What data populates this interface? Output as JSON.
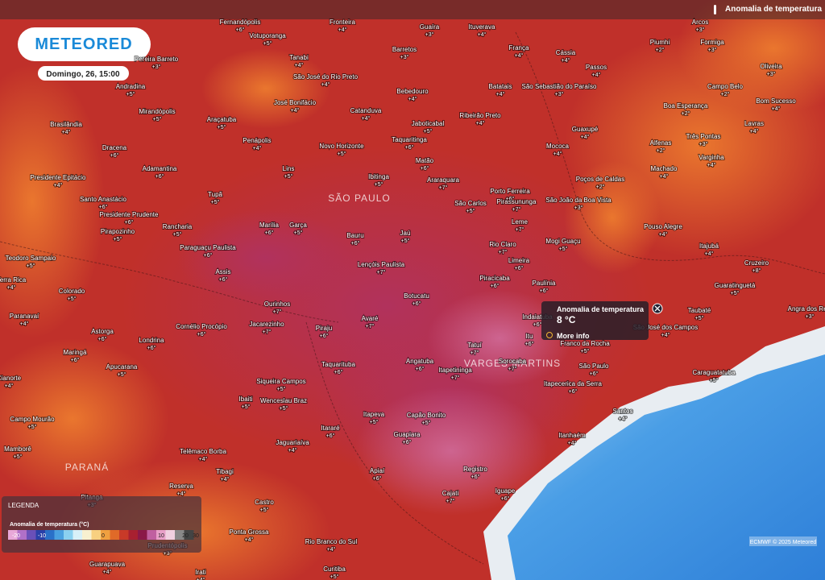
{
  "header": {
    "logo": "METEORED",
    "timestamp": "Domingo, 26, 15:00",
    "layer_title": "Anomalia de temperatura"
  },
  "legend": {
    "title": "LEGENDA",
    "subtitle": "Anomalia de temperatura (°C)",
    "ticks": [
      "-20",
      "-10",
      "0",
      "10",
      "20",
      "30"
    ]
  },
  "popup": {
    "title": "Anomalia de temperatura",
    "value": "8 °C",
    "link": "More info"
  },
  "regions": [
    "SÃO PAULO",
    "PARANÁ",
    "VARGES MARTINS"
  ],
  "attribution": "ECMWF © 2025 Meteored",
  "cities": [
    {
      "name": "Fernandópolis",
      "anomaly": "+6°"
    },
    {
      "name": "Votuporanga",
      "anomaly": "+5°"
    },
    {
      "name": "Fronteira",
      "anomaly": "+4°"
    },
    {
      "name": "Guaíra",
      "anomaly": "+3°"
    },
    {
      "name": "Ituverava",
      "anomaly": "+4°"
    },
    {
      "name": "Barretos",
      "anomaly": "+3°"
    },
    {
      "name": "França",
      "anomaly": "+4°"
    },
    {
      "name": "Cássia",
      "anomaly": "+4°"
    },
    {
      "name": "Passos",
      "anomaly": "+4°"
    },
    {
      "name": "Pereira Barreto",
      "anomaly": "+3°"
    },
    {
      "name": "Tanabi",
      "anomaly": "+4°"
    },
    {
      "name": "São José do Rio Preto",
      "anomaly": "+4°"
    },
    {
      "name": "Bebedouro",
      "anomaly": "+4°"
    },
    {
      "name": "Batatais",
      "anomaly": "+4°"
    },
    {
      "name": "São Sebastião do Paraíso",
      "anomaly": "+3°"
    },
    {
      "name": "Andradina",
      "anomaly": "+5°"
    },
    {
      "name": "José Bonifácio",
      "anomaly": "+4°"
    },
    {
      "name": "Catanduva",
      "anomaly": "+4°"
    },
    {
      "name": "Ribeirão Preto",
      "anomaly": "+4°"
    },
    {
      "name": "Mirandópolis",
      "anomaly": "+5°"
    },
    {
      "name": "Araçatuba",
      "anomaly": "+5°"
    },
    {
      "name": "Jaboticabal",
      "anomaly": "+5°"
    },
    {
      "name": "Guaxupé",
      "anomaly": "+4°"
    },
    {
      "name": "Brasilândia",
      "anomaly": "+4°"
    },
    {
      "name": "Penápolis",
      "anomaly": "+4°"
    },
    {
      "name": "Novo Horizonte",
      "anomaly": "+5°"
    },
    {
      "name": "Taquaritinga",
      "anomaly": "+6°"
    },
    {
      "name": "Mococa",
      "anomaly": "+4°"
    },
    {
      "name": "Dracena",
      "anomaly": "+6°"
    },
    {
      "name": "Adamantina",
      "anomaly": "+6°"
    },
    {
      "name": "Lins",
      "anomaly": "+5°"
    },
    {
      "name": "Matão",
      "anomaly": "+6°"
    },
    {
      "name": "Ibitinga",
      "anomaly": "+5°"
    },
    {
      "name": "Araraquara",
      "anomaly": "+7°"
    },
    {
      "name": "Porto Ferreira",
      "anomaly": "+6°"
    },
    {
      "name": "Poços de Caldas",
      "anomaly": "+2°"
    },
    {
      "name": "Machado",
      "anomaly": "+4°"
    },
    {
      "name": "Presidente Epitácio",
      "anomaly": "+4°"
    },
    {
      "name": "Tupã",
      "anomaly": "+5°"
    },
    {
      "name": "São Carlos",
      "anomaly": "+5°"
    },
    {
      "name": "Pirassununga",
      "anomaly": "+7°"
    },
    {
      "name": "São João da Boa Vista",
      "anomaly": "+3°"
    },
    {
      "name": "Santo Anastácio",
      "anomaly": "+6°"
    },
    {
      "name": "Presidente Prudente",
      "anomaly": "+6°"
    },
    {
      "name": "Rancharia",
      "anomaly": "+5°"
    },
    {
      "name": "Marília",
      "anomaly": "+6°"
    },
    {
      "name": "Garça",
      "anomaly": "+5°"
    },
    {
      "name": "Leme",
      "anomaly": "+7°"
    },
    {
      "name": "Bauru",
      "anomaly": "+6°"
    },
    {
      "name": "Jaú",
      "anomaly": "+5°"
    },
    {
      "name": "Pouso Alegre",
      "anomaly": "+4°"
    },
    {
      "name": "Pirapozinho",
      "anomaly": "+5°"
    },
    {
      "name": "Paraguaçu Paulista",
      "anomaly": "+6°"
    },
    {
      "name": "Rio Claro",
      "anomaly": "+7°"
    },
    {
      "name": "Mogi Guaçu",
      "anomaly": "+5°"
    },
    {
      "name": "Teodoro Sampaio",
      "anomaly": "+5°"
    },
    {
      "name": "Lençóis Paulista",
      "anomaly": "+7°"
    },
    {
      "name": "Limeira",
      "anomaly": "+6°"
    },
    {
      "name": "Cruzeiro",
      "anomaly": "+8°"
    },
    {
      "name": "Assis",
      "anomaly": "+6°"
    },
    {
      "name": "Piracicaba",
      "anomaly": "+6°"
    },
    {
      "name": "Paulínia",
      "anomaly": "+6°"
    },
    {
      "name": "Guaratinguetá",
      "anomaly": "+5°"
    },
    {
      "name": "Colorado",
      "anomaly": "+5°"
    },
    {
      "name": "Botucatu",
      "anomaly": "+6°"
    },
    {
      "name": "Ourinhos",
      "anomaly": "+7°"
    },
    {
      "name": "Taubaté",
      "anomaly": "+5°"
    },
    {
      "name": "Paranavaí",
      "anomaly": "+4°"
    },
    {
      "name": "Avaré",
      "anomaly": "+7°"
    },
    {
      "name": "Indaiatuba",
      "anomaly": "+6°"
    },
    {
      "name": "São José dos Campos",
      "anomaly": "+4°"
    },
    {
      "name": "Cornélio Procópio",
      "anomaly": "+6°"
    },
    {
      "name": "Jacarezinho",
      "anomaly": "+7°"
    },
    {
      "name": "Piraju",
      "anomaly": "+6°"
    },
    {
      "name": "Astorga",
      "anomaly": "+6°"
    },
    {
      "name": "Itu",
      "anomaly": "+6°"
    },
    {
      "name": "Londrina",
      "anomaly": "+6°"
    },
    {
      "name": "Franco da Rocha",
      "anomaly": "+5°"
    },
    {
      "name": "Tatuí",
      "anomaly": "+7°"
    },
    {
      "name": "Maringá",
      "anomaly": "+6°"
    },
    {
      "name": "Apucarana",
      "anomaly": "+5°"
    },
    {
      "name": "Taquarituba",
      "anomaly": "+6°"
    },
    {
      "name": "Angatuba",
      "anomaly": "+6°"
    },
    {
      "name": "Sorocaba",
      "anomaly": "+7°"
    },
    {
      "name": "São Paulo",
      "anomaly": "+6°"
    },
    {
      "name": "Itapetininga",
      "anomaly": "+7°"
    },
    {
      "name": "Caraguatatuba",
      "anomaly": "+5°"
    },
    {
      "name": "Cianorte",
      "anomaly": "+4°"
    },
    {
      "name": "Siqueira Campos",
      "anomaly": "+5°"
    },
    {
      "name": "Itapecerica da Serra",
      "anomaly": "+6°"
    },
    {
      "name": "Ibaiti",
      "anomaly": "+5°"
    },
    {
      "name": "Wenceslau Braz",
      "anomaly": "+5°"
    },
    {
      "name": "Itapeva",
      "anomaly": "+5°"
    },
    {
      "name": "Capão Bonito",
      "anomaly": "+5°"
    },
    {
      "name": "Santos",
      "anomaly": "+4°"
    },
    {
      "name": "Campo Mourão",
      "anomaly": "+5°"
    },
    {
      "name": "Itararé",
      "anomaly": "+6°"
    },
    {
      "name": "Guapiara",
      "anomaly": "+6°"
    },
    {
      "name": "Itanhaém",
      "anomaly": "+4°"
    },
    {
      "name": "Jaguariaíva",
      "anomaly": "+4°"
    },
    {
      "name": "Mamborê",
      "anomaly": "+5°"
    },
    {
      "name": "Telêmaco Borba",
      "anomaly": "+4°"
    },
    {
      "name": "Tibagi",
      "anomaly": "+4°"
    },
    {
      "name": "Apiaí",
      "anomaly": "+6°"
    },
    {
      "name": "Registro",
      "anomaly": "+6°"
    },
    {
      "name": "Reserva",
      "anomaly": "+4°"
    },
    {
      "name": "Cajati",
      "anomaly": "+7°"
    },
    {
      "name": "Iguape",
      "anomaly": "+6°"
    },
    {
      "name": "Castro",
      "anomaly": "+5°"
    },
    {
      "name": "Ponta Grossa",
      "anomaly": "+4°"
    },
    {
      "name": "Prudentópolis",
      "anomaly": "+3°"
    },
    {
      "name": "Rio Branco do Sul",
      "anomaly": "+4°"
    },
    {
      "name": "Irati",
      "anomaly": "+4°"
    },
    {
      "name": "Curitiba",
      "anomaly": "+5°"
    },
    {
      "name": "Guarapuava",
      "anomaly": "+4°"
    },
    {
      "name": "Varginha",
      "anomaly": "+4°"
    },
    {
      "name": "Três Pontas",
      "anomaly": "+3°"
    },
    {
      "name": "Alfenas",
      "anomaly": "+2°"
    },
    {
      "name": "Lavras",
      "anomaly": "+4°"
    },
    {
      "name": "Campo Belo",
      "anomaly": "+2°"
    },
    {
      "name": "Bom Sucesso",
      "anomaly": "+4°"
    },
    {
      "name": "Boa Esperança",
      "anomaly": "+2°"
    },
    {
      "name": "Oliveira",
      "anomaly": "+3°"
    },
    {
      "name": "Formiga",
      "anomaly": "+3°"
    },
    {
      "name": "Arcos",
      "anomaly": "+3°"
    },
    {
      "name": "Piumhi",
      "anomaly": "+2°"
    },
    {
      "name": "Itajubá",
      "anomaly": "+4°"
    },
    {
      "name": "Angra dos Reis",
      "anomaly": "+3°"
    },
    {
      "name": "Terra Rica",
      "anomaly": "+4°"
    },
    {
      "name": "Pitanga",
      "anomaly": "+3°"
    }
  ]
}
